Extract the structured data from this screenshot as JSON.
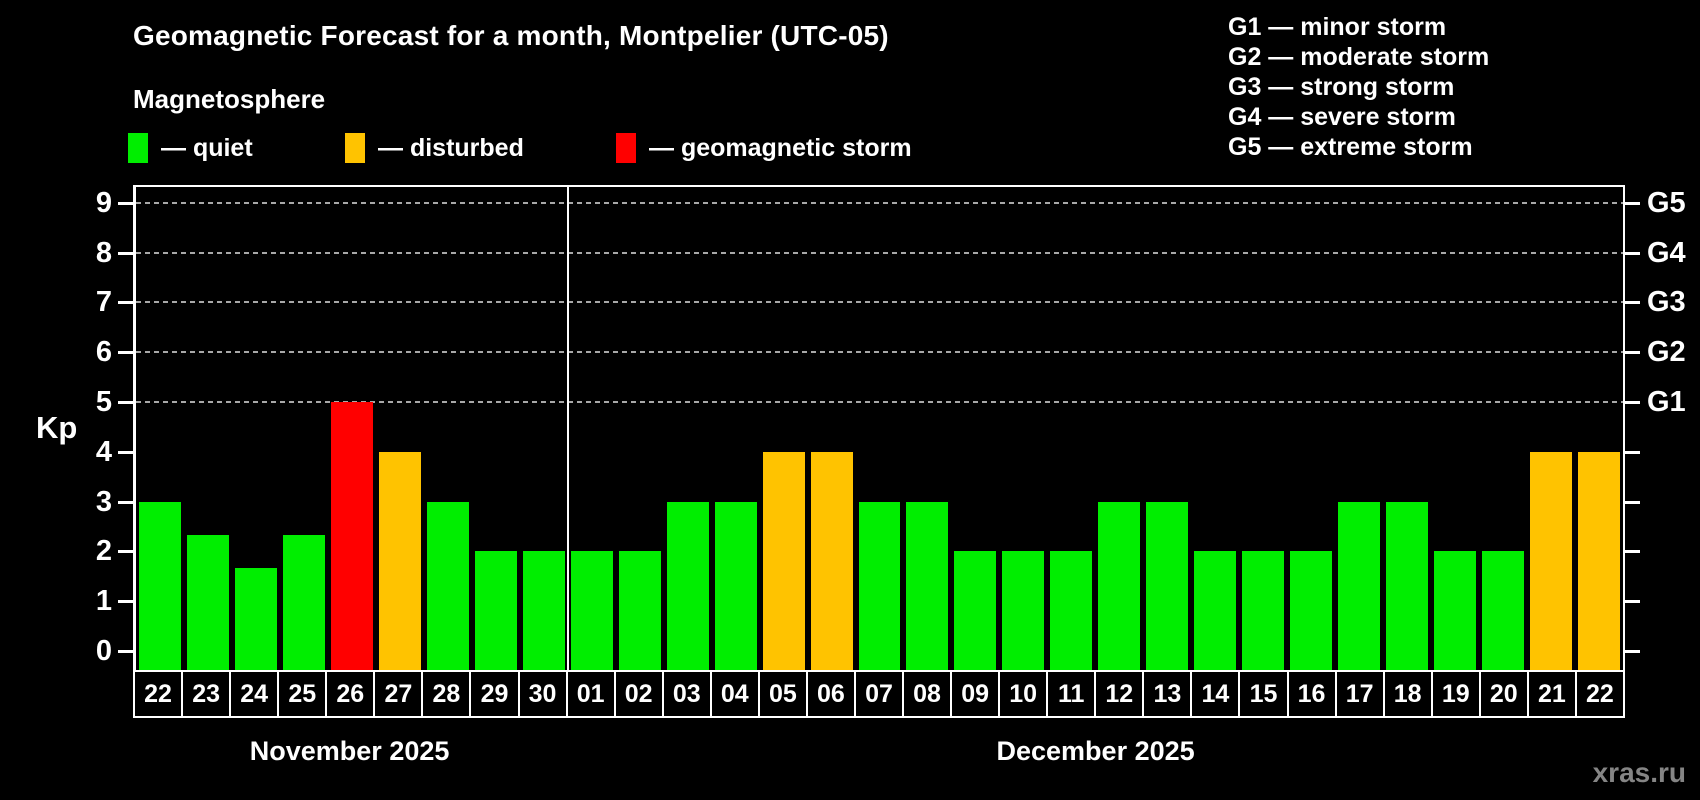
{
  "watermark": "xras.ru",
  "chart_data": {
    "type": "bar",
    "title": "Geomagnetic Forecast for a month, Montpelier (UTC-05)",
    "subtitle": "Magnetosphere",
    "ylabel": "Kp",
    "xlabel": "",
    "ylim": [
      0,
      9
    ],
    "yticks": [
      0,
      1,
      2,
      3,
      4,
      5,
      6,
      7,
      8,
      9
    ],
    "grid": "dashed horizontal lines at Kp 5-9",
    "legend_position": "top-left",
    "gridlines_at": [
      5,
      6,
      7,
      8,
      9
    ],
    "right_axis_labels": [
      {
        "value": 5,
        "label": "G1"
      },
      {
        "value": 6,
        "label": "G2"
      },
      {
        "value": 7,
        "label": "G3"
      },
      {
        "value": 8,
        "label": "G4"
      },
      {
        "value": 9,
        "label": "G5"
      }
    ],
    "legend": {
      "items": [
        {
          "label": "— quiet",
          "status": "quiet",
          "color": "#00ee00"
        },
        {
          "label": "— disturbed",
          "status": "disturbed",
          "color": "#ffc300"
        },
        {
          "label": "— geomagnetic storm",
          "status": "storm",
          "color": "#ff0000"
        }
      ]
    },
    "storm_scale_legend": [
      "G1 — minor storm",
      "G2 — moderate storm",
      "G3 — strong storm",
      "G4 — severe storm",
      "G5 — extreme storm"
    ],
    "status_colors": {
      "quiet": "#00ee00",
      "disturbed": "#ffc300",
      "storm": "#ff0000"
    },
    "months": [
      {
        "label": "November 2025",
        "days": [
          {
            "day": "22",
            "kp": 3.0,
            "status": "quiet"
          },
          {
            "day": "23",
            "kp": 2.33,
            "status": "quiet"
          },
          {
            "day": "24",
            "kp": 1.67,
            "status": "quiet"
          },
          {
            "day": "25",
            "kp": 2.33,
            "status": "quiet"
          },
          {
            "day": "26",
            "kp": 5.0,
            "status": "storm"
          },
          {
            "day": "27",
            "kp": 4.0,
            "status": "disturbed"
          },
          {
            "day": "28",
            "kp": 3.0,
            "status": "quiet"
          },
          {
            "day": "29",
            "kp": 2.0,
            "status": "quiet"
          },
          {
            "day": "30",
            "kp": 2.0,
            "status": "quiet"
          }
        ]
      },
      {
        "label": "December 2025",
        "days": [
          {
            "day": "01",
            "kp": 2.0,
            "status": "quiet"
          },
          {
            "day": "02",
            "kp": 2.0,
            "status": "quiet"
          },
          {
            "day": "03",
            "kp": 3.0,
            "status": "quiet"
          },
          {
            "day": "04",
            "kp": 3.0,
            "status": "quiet"
          },
          {
            "day": "05",
            "kp": 4.0,
            "status": "disturbed"
          },
          {
            "day": "06",
            "kp": 4.0,
            "status": "disturbed"
          },
          {
            "day": "07",
            "kp": 3.0,
            "status": "quiet"
          },
          {
            "day": "08",
            "kp": 3.0,
            "status": "quiet"
          },
          {
            "day": "09",
            "kp": 2.0,
            "status": "quiet"
          },
          {
            "day": "10",
            "kp": 2.0,
            "status": "quiet"
          },
          {
            "day": "11",
            "kp": 2.0,
            "status": "quiet"
          },
          {
            "day": "12",
            "kp": 3.0,
            "status": "quiet"
          },
          {
            "day": "13",
            "kp": 3.0,
            "status": "quiet"
          },
          {
            "day": "14",
            "kp": 2.0,
            "status": "quiet"
          },
          {
            "day": "15",
            "kp": 2.0,
            "status": "quiet"
          },
          {
            "day": "16",
            "kp": 2.0,
            "status": "quiet"
          },
          {
            "day": "17",
            "kp": 3.0,
            "status": "quiet"
          },
          {
            "day": "18",
            "kp": 3.0,
            "status": "quiet"
          },
          {
            "day": "19",
            "kp": 2.0,
            "status": "quiet"
          },
          {
            "day": "20",
            "kp": 2.0,
            "status": "quiet"
          },
          {
            "day": "21",
            "kp": 4.0,
            "status": "disturbed"
          },
          {
            "day": "22",
            "kp": 4.0,
            "status": "disturbed"
          }
        ]
      }
    ]
  }
}
